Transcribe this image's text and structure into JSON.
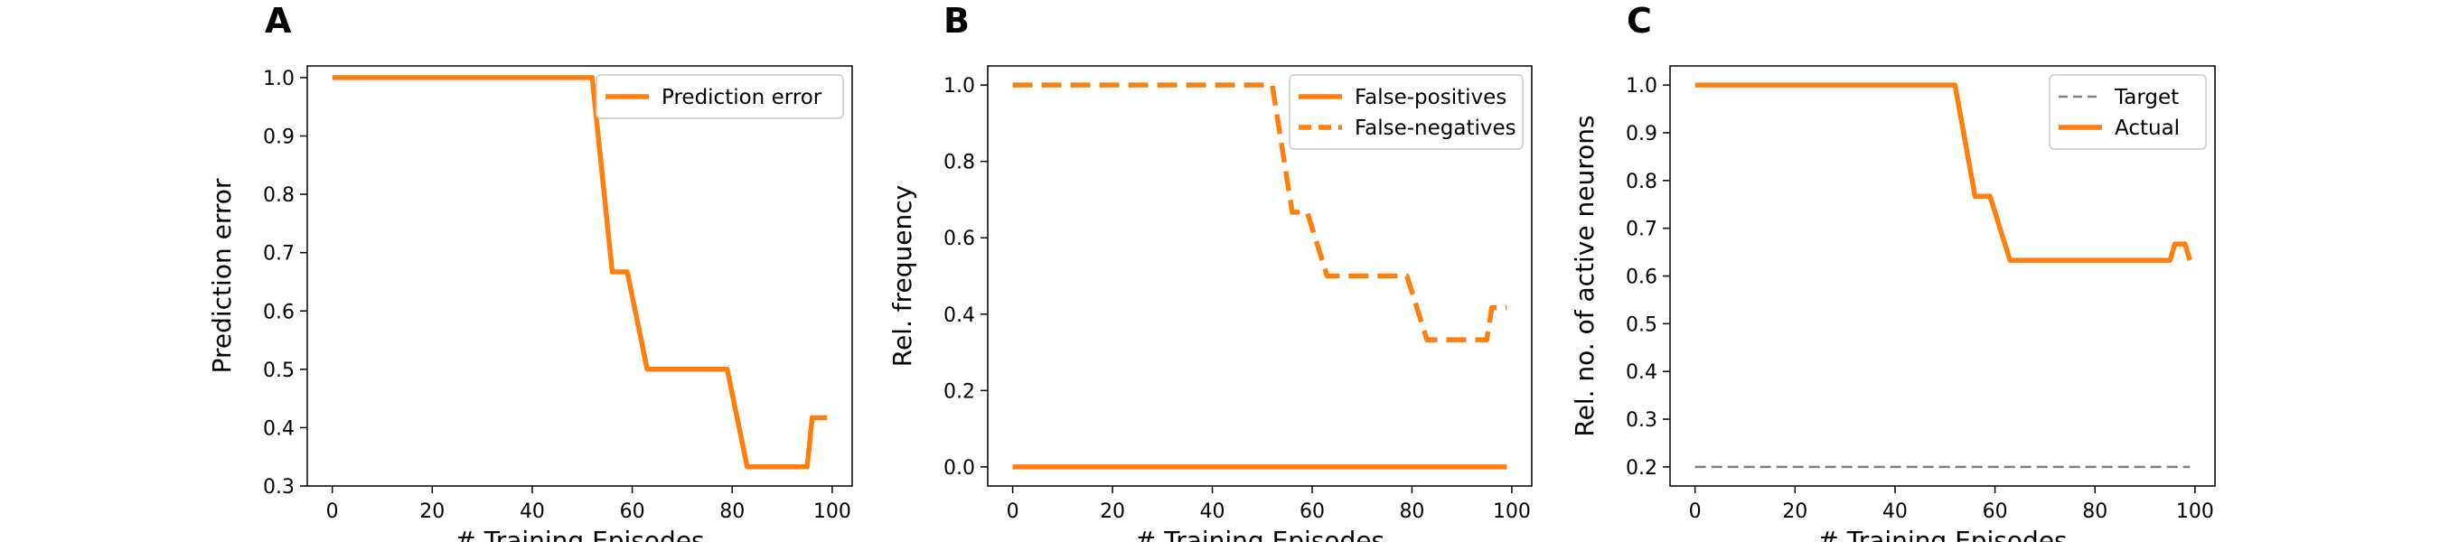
{
  "colors": {
    "orange": "#ff7f0e",
    "gray": "#808080"
  },
  "chart_data": [
    {
      "type": "line",
      "panel_label": "A",
      "xlabel": "# Training Episodes",
      "ylabel": "Prediction error",
      "xlim": [
        -5,
        104
      ],
      "ylim": [
        0.3,
        1.02
      ],
      "xticks": [
        0,
        20,
        40,
        60,
        80,
        100
      ],
      "xtick_labels": [
        "0",
        "20",
        "40",
        "60",
        "80",
        "100"
      ],
      "yticks": [
        0.3,
        0.4,
        0.5,
        0.6,
        0.7,
        0.8,
        0.9,
        1.0
      ],
      "ytick_labels": [
        "0.3",
        "0.4",
        "0.5",
        "0.6",
        "0.7",
        "0.8",
        "0.9",
        "1.0"
      ],
      "legend_position": "upper-right",
      "series": [
        {
          "name": "Prediction error",
          "color": "#ff7f0e",
          "dash": "solid",
          "x": [
            0,
            52,
            56,
            59,
            63,
            79,
            83,
            95,
            96,
            99
          ],
          "y": [
            1.0,
            1.0,
            0.667,
            0.667,
            0.5,
            0.5,
            0.333,
            0.333,
            0.417,
            0.417
          ]
        }
      ]
    },
    {
      "type": "line",
      "panel_label": "B",
      "xlabel": "# Training Episodes",
      "ylabel": "Rel. frequency",
      "xlim": [
        -5,
        104
      ],
      "ylim": [
        -0.05,
        1.05
      ],
      "xticks": [
        0,
        20,
        40,
        60,
        80,
        100
      ],
      "xtick_labels": [
        "0",
        "20",
        "40",
        "60",
        "80",
        "100"
      ],
      "yticks": [
        0.0,
        0.2,
        0.4,
        0.6,
        0.8,
        1.0
      ],
      "ytick_labels": [
        "0.0",
        "0.2",
        "0.4",
        "0.6",
        "0.8",
        "1.0"
      ],
      "legend_position": "upper-right",
      "series": [
        {
          "name": "False-positives",
          "color": "#ff7f0e",
          "dash": "solid",
          "x": [
            0,
            99
          ],
          "y": [
            0.0,
            0.0
          ]
        },
        {
          "name": "False-negatives",
          "color": "#ff7f0e",
          "dash": "dashed",
          "x": [
            0,
            52,
            56,
            59,
            63,
            79,
            83,
            95,
            96,
            99
          ],
          "y": [
            1.0,
            1.0,
            0.667,
            0.667,
            0.5,
            0.5,
            0.333,
            0.333,
            0.417,
            0.417
          ]
        }
      ]
    },
    {
      "type": "line",
      "panel_label": "C",
      "xlabel": "# Training Episodes",
      "ylabel": "Rel. no. of active neurons",
      "xlim": [
        -5,
        104
      ],
      "ylim": [
        0.16,
        1.04
      ],
      "xticks": [
        0,
        20,
        40,
        60,
        80,
        100
      ],
      "xtick_labels": [
        "0",
        "20",
        "40",
        "60",
        "80",
        "100"
      ],
      "yticks": [
        0.2,
        0.3,
        0.4,
        0.5,
        0.6,
        0.7,
        0.8,
        0.9,
        1.0
      ],
      "ytick_labels": [
        "0.2",
        "0.3",
        "0.4",
        "0.5",
        "0.6",
        "0.7",
        "0.8",
        "0.9",
        "1.0"
      ],
      "legend_position": "upper-right",
      "series": [
        {
          "name": "Target",
          "color": "#808080",
          "dash": "thin-dashed",
          "x": [
            0,
            99
          ],
          "y": [
            0.2,
            0.2
          ]
        },
        {
          "name": "Actual",
          "color": "#ff7f0e",
          "dash": "solid",
          "x": [
            0,
            52,
            56,
            57,
            59,
            63,
            95,
            96,
            98,
            99
          ],
          "y": [
            1.0,
            1.0,
            0.767,
            0.767,
            0.767,
            0.633,
            0.633,
            0.667,
            0.667,
            0.633
          ]
        }
      ]
    }
  ]
}
